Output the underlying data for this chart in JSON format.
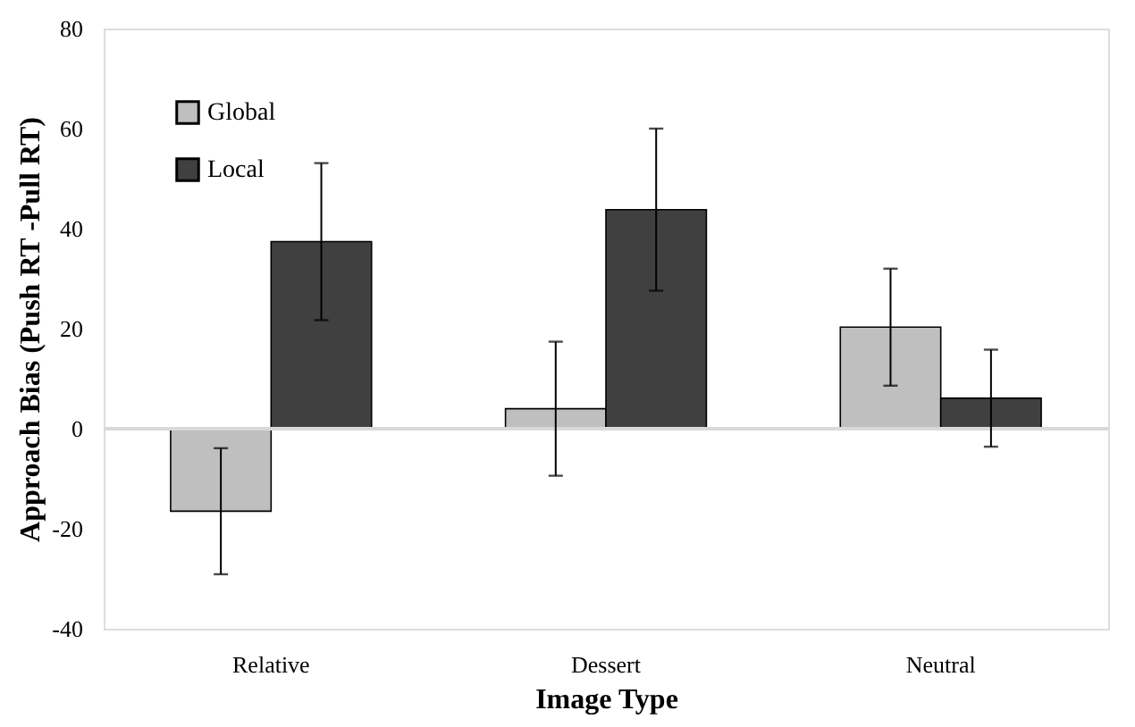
{
  "chart_data": {
    "type": "bar",
    "xlabel": "Image Type",
    "ylabel": "Approach Bias (Push RT -Pull RT)",
    "categories": [
      "Relative",
      "Dessert",
      "Neutral"
    ],
    "series": [
      {
        "name": "Global",
        "color": "#bfbfbf",
        "values": [
          -16.5,
          4.0,
          20.3
        ],
        "errors": [
          12.6,
          13.4,
          11.7
        ]
      },
      {
        "name": "Local",
        "color": "#404040",
        "values": [
          37.4,
          43.8,
          6.1
        ],
        "errors": [
          15.7,
          16.2,
          9.7
        ]
      }
    ],
    "ylim": [
      -40,
      80
    ],
    "yticks": [
      -40,
      -20,
      0,
      20,
      40,
      60,
      80
    ],
    "ref_lines": [
      {
        "axis": "y",
        "value": 0,
        "color": "#d9d9d9"
      }
    ],
    "legend": "top left"
  }
}
